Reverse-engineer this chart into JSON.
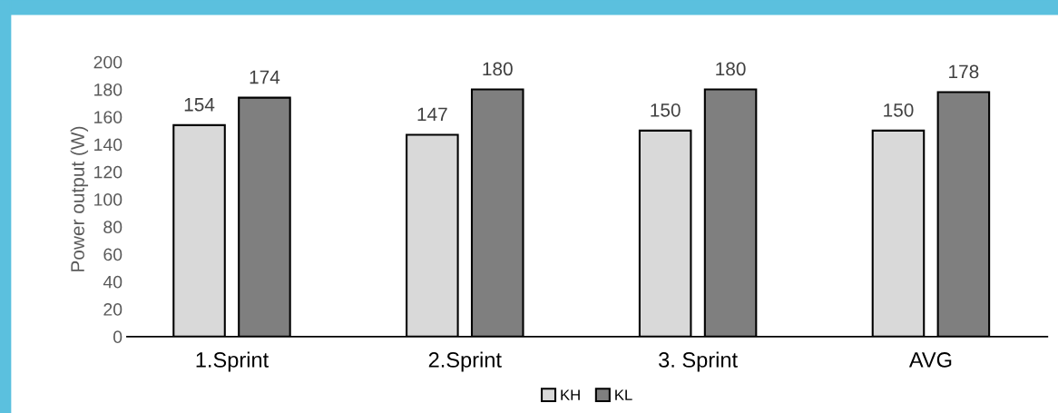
{
  "chart_data": {
    "type": "bar",
    "ylabel": "Power output (W)",
    "categories": [
      "1.Sprint",
      "2.Sprint",
      "3. Sprint",
      "AVG"
    ],
    "series": [
      {
        "name": "KH",
        "color": "#d9d9d9",
        "values": [
          154,
          147,
          150,
          150
        ]
      },
      {
        "name": "KL",
        "color": "#7f7f7f",
        "values": [
          174,
          180,
          180,
          178
        ]
      }
    ],
    "ylim": [
      0,
      200
    ],
    "yticks": [
      0,
      20,
      40,
      60,
      80,
      100,
      120,
      140,
      160,
      180,
      200
    ],
    "grid": false,
    "legend": "bottom",
    "data_labels": true
  }
}
